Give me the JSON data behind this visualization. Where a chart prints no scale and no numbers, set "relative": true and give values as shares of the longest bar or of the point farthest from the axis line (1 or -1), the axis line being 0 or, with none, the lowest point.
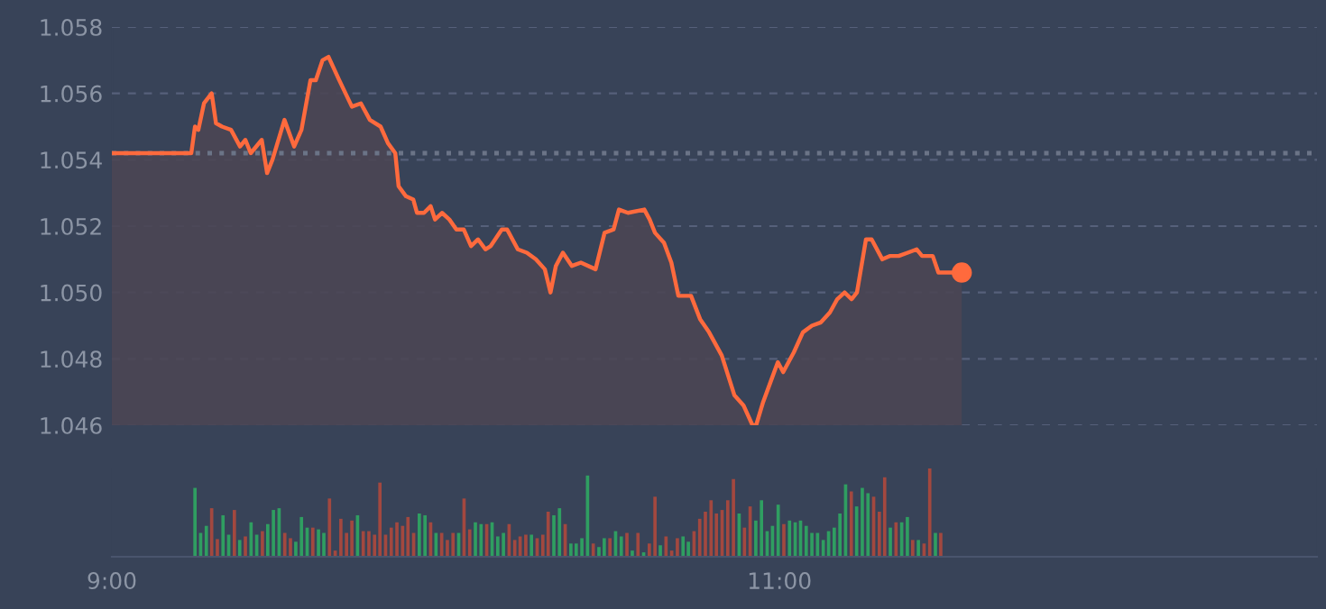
{
  "chart_data": [
    {
      "type": "area",
      "tick_labels": "y",
      "xlim": [
        9,
        12.61
      ],
      "ylim": [
        1.046,
        1.058
      ],
      "yticks": [
        1.046,
        1.048,
        {
          "value": 1.05,
          "label": "1.050"
        },
        1.052,
        1.054,
        1.056,
        1.058
      ],
      "grid": "y",
      "line_style": "solid",
      "ref_lines": [
        {
          "axis": "y",
          "value": 1.0542,
          "line_style": "dotted",
          "color": "#6b7487"
        }
      ],
      "series": [
        {
          "type": "area",
          "color": "#ff6a3d",
          "x": [
            9.0,
            9.238,
            9.249,
            9.259,
            9.276,
            9.299,
            9.312,
            9.33,
            9.357,
            9.384,
            9.4,
            9.416,
            9.449,
            9.465,
            9.481,
            9.517,
            9.546,
            9.568,
            9.595,
            9.611,
            9.631,
            9.649,
            9.681,
            9.719,
            9.746,
            9.773,
            9.805,
            9.827,
            9.849,
            9.859,
            9.881,
            9.903,
            9.914,
            9.935,
            9.955,
            9.968,
            9.989,
            10.011,
            10.032,
            10.054,
            10.076,
            10.097,
            10.119,
            10.135,
            10.168,
            10.184,
            10.216,
            10.243,
            10.27,
            10.297,
            10.314,
            10.33,
            10.351,
            10.378,
            10.405,
            10.449,
            10.476,
            10.503,
            10.519,
            10.546,
            10.595,
            10.611,
            10.627,
            10.654,
            10.676,
            10.697,
            10.735,
            10.762,
            10.789,
            10.827,
            10.865,
            10.892,
            10.919,
            10.93,
            10.951,
            10.973,
            10.995,
            11.011,
            11.043,
            11.07,
            11.097,
            11.124,
            11.151,
            11.173,
            11.195,
            11.216,
            11.232,
            11.259,
            11.276,
            11.308,
            11.33,
            11.357,
            11.384,
            11.411,
            11.427,
            11.459,
            11.476,
            11.514,
            11.546
          ],
          "values": [
            1.0542,
            1.0542,
            1.055,
            1.0549,
            1.0557,
            1.056,
            1.0551,
            1.055,
            1.0549,
            1.0544,
            1.0546,
            1.0542,
            1.0546,
            1.0536,
            1.054,
            1.0552,
            1.0544,
            1.0549,
            1.0564,
            1.0564,
            1.057,
            1.0571,
            1.0564,
            1.0556,
            1.0557,
            1.0552,
            1.055,
            1.0545,
            1.0542,
            1.0532,
            1.0529,
            1.0528,
            1.0524,
            1.0524,
            1.0526,
            1.0522,
            1.0524,
            1.0522,
            1.0519,
            1.0519,
            1.0514,
            1.0516,
            1.0513,
            1.0514,
            1.0519,
            1.0519,
            1.0513,
            1.0512,
            1.051,
            1.0507,
            1.05,
            1.0508,
            1.0512,
            1.0508,
            1.0509,
            1.0507,
            1.0518,
            1.0519,
            1.0525,
            1.0524,
            1.0525,
            1.0522,
            1.0518,
            1.0515,
            1.0509,
            1.0499,
            1.0499,
            1.0492,
            1.0488,
            1.0481,
            1.0469,
            1.0466,
            1.046,
            1.046,
            1.0467,
            1.0473,
            1.0479,
            1.0476,
            1.0482,
            1.0488,
            1.049,
            1.0491,
            1.0494,
            1.0498,
            1.05,
            1.0498,
            1.05,
            1.0516,
            1.0516,
            1.051,
            1.0511,
            1.0511,
            1.0512,
            1.0513,
            1.0511,
            1.0511,
            1.0506,
            1.0506,
            1.0506
          ]
        },
        {
          "type": "scatter",
          "marker": "circle",
          "color": "#ff6a3d",
          "x": [
            11.546
          ],
          "values": [
            1.0506
          ]
        }
      ]
    },
    {
      "type": "bar",
      "relative": true,
      "xlim": [
        9,
        12.61
      ],
      "xticks": [
        {
          "value": 9,
          "label": "9:00"
        },
        {
          "value": 11,
          "label": "11:00"
        }
      ],
      "x": [
        9.249,
        9.266,
        9.283,
        9.299,
        9.316,
        9.333,
        9.35,
        9.367,
        9.383,
        9.4,
        9.417,
        9.434,
        9.451,
        9.467,
        9.484,
        9.501,
        9.518,
        9.535,
        9.551,
        9.568,
        9.585,
        9.602,
        9.619,
        9.635,
        9.652,
        9.669,
        9.686,
        9.703,
        9.719,
        9.736,
        9.753,
        9.77,
        9.787,
        9.803,
        9.82,
        9.837,
        9.854,
        9.871,
        9.887,
        9.904,
        9.921,
        9.938,
        9.955,
        9.971,
        9.988,
        10.005,
        10.022,
        10.039,
        10.055,
        10.072,
        10.089,
        10.106,
        10.123,
        10.139,
        10.156,
        10.173,
        10.19,
        10.207,
        10.223,
        10.24,
        10.257,
        10.274,
        10.291,
        10.307,
        10.324,
        10.341,
        10.358,
        10.375,
        10.391,
        10.408,
        10.425,
        10.442,
        10.459,
        10.475,
        10.492,
        10.509,
        10.526,
        10.543,
        10.559,
        10.576,
        10.593,
        10.61,
        10.627,
        10.643,
        10.66,
        10.677,
        10.694,
        10.711,
        10.727,
        10.744,
        10.761,
        10.778,
        10.795,
        10.811,
        10.828,
        10.845,
        10.862,
        10.879,
        10.895,
        10.912,
        10.929,
        10.946,
        10.963,
        10.979,
        10.996,
        11.013,
        11.03,
        11.047,
        11.063,
        11.08,
        11.097,
        11.114,
        11.131,
        11.147,
        11.164,
        11.181,
        11.198,
        11.215,
        11.231,
        11.248,
        11.265,
        11.282,
        11.299,
        11.315,
        11.332,
        11.349,
        11.366,
        11.383,
        11.399,
        11.416,
        11.433,
        11.45,
        11.467,
        11.483
      ],
      "values": [
        0.78,
        0.27,
        0.35,
        0.55,
        0.2,
        0.47,
        0.25,
        0.53,
        0.19,
        0.23,
        0.39,
        0.25,
        0.29,
        0.37,
        0.53,
        0.55,
        0.27,
        0.21,
        0.17,
        0.45,
        0.33,
        0.33,
        0.31,
        0.27,
        0.66,
        0.07,
        0.43,
        0.27,
        0.41,
        0.47,
        0.29,
        0.29,
        0.25,
        0.84,
        0.25,
        0.33,
        0.39,
        0.35,
        0.45,
        0.27,
        0.49,
        0.47,
        0.39,
        0.27,
        0.27,
        0.19,
        0.27,
        0.27,
        0.66,
        0.31,
        0.39,
        0.37,
        0.37,
        0.39,
        0.23,
        0.27,
        0.37,
        0.19,
        0.23,
        0.25,
        0.25,
        0.21,
        0.25,
        0.51,
        0.47,
        0.55,
        0.37,
        0.15,
        0.15,
        0.21,
        0.92,
        0.15,
        0.11,
        0.21,
        0.21,
        0.29,
        0.23,
        0.27,
        0.07,
        0.27,
        0.05,
        0.15,
        0.68,
        0.13,
        0.23,
        0.07,
        0.21,
        0.23,
        0.17,
        0.29,
        0.43,
        0.51,
        0.64,
        0.49,
        0.53,
        0.64,
        0.88,
        0.49,
        0.33,
        0.57,
        0.41,
        0.64,
        0.29,
        0.35,
        0.59,
        0.37,
        0.41,
        0.39,
        0.41,
        0.35,
        0.27,
        0.27,
        0.19,
        0.29,
        0.33,
        0.49,
        0.82,
        0.74,
        0.57,
        0.78,
        0.72,
        0.68,
        0.51,
        0.9,
        0.33,
        0.39,
        0.39,
        0.45,
        0.19,
        0.19,
        0.15,
        1,
        0.27,
        0.27
      ],
      "colors": [
        "#2f9e61",
        "#2f9e61",
        "#2f9e61",
        "#a3483f",
        "#a3483f",
        "#2f9e61",
        "#2f9e61",
        "#a3483f",
        "#2f9e61",
        "#a3483f",
        "#2f9e61",
        "#2f9e61",
        "#a3483f",
        "#2f9e61",
        "#2f9e61",
        "#2f9e61",
        "#a3483f",
        "#a3483f",
        "#2f9e61",
        "#2f9e61",
        "#2f9e61",
        "#a3483f",
        "#2f9e61",
        "#2f9e61",
        "#a3483f",
        "#a3483f",
        "#a3483f",
        "#a3483f",
        "#a3483f",
        "#2f9e61",
        "#a3483f",
        "#a3483f",
        "#a3483f",
        "#a3483f",
        "#a3483f",
        "#a3483f",
        "#a3483f",
        "#a3483f",
        "#a3483f",
        "#a3483f",
        "#2f9e61",
        "#2f9e61",
        "#a3483f",
        "#2f9e61",
        "#a3483f",
        "#a3483f",
        "#a3483f",
        "#2f9e61",
        "#a3483f",
        "#a3483f",
        "#2f9e61",
        "#2f9e61",
        "#a3483f",
        "#2f9e61",
        "#2f9e61",
        "#2f9e61",
        "#a3483f",
        "#a3483f",
        "#a3483f",
        "#a3483f",
        "#2f9e61",
        "#a3483f",
        "#a3483f",
        "#a3483f",
        "#2f9e61",
        "#2f9e61",
        "#a3483f",
        "#2f9e61",
        "#2f9e61",
        "#2f9e61",
        "#2f9e61",
        "#a3483f",
        "#2f9e61",
        "#2f9e61",
        "#a3483f",
        "#2f9e61",
        "#2f9e61",
        "#a3483f",
        "#2f9e61",
        "#a3483f",
        "#2f9e61",
        "#a3483f",
        "#a3483f",
        "#2f9e61",
        "#a3483f",
        "#a3483f",
        "#a3483f",
        "#2f9e61",
        "#2f9e61",
        "#a3483f",
        "#a3483f",
        "#a3483f",
        "#a3483f",
        "#a3483f",
        "#a3483f",
        "#a3483f",
        "#a3483f",
        "#2f9e61",
        "#a3483f",
        "#a3483f",
        "#2f9e61",
        "#2f9e61",
        "#2f9e61",
        "#2f9e61",
        "#2f9e61",
        "#a3483f",
        "#2f9e61",
        "#2f9e61",
        "#2f9e61",
        "#2f9e61",
        "#2f9e61",
        "#2f9e61",
        "#2f9e61",
        "#2f9e61",
        "#2f9e61",
        "#2f9e61",
        "#2f9e61",
        "#a3483f",
        "#2f9e61",
        "#2f9e61",
        "#2f9e61",
        "#a3483f",
        "#a3483f",
        "#a3483f",
        "#2f9e61",
        "#a3483f",
        "#2f9e61",
        "#2f9e61",
        "#a3483f",
        "#2f9e61",
        "#a3483f",
        "#a3483f",
        "#2f9e61",
        "#a3483f"
      ]
    }
  ]
}
